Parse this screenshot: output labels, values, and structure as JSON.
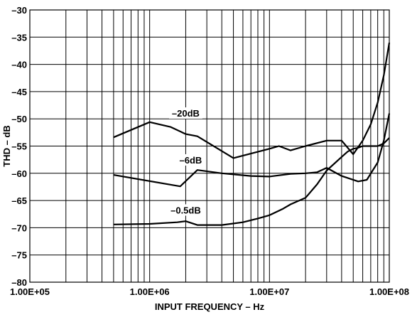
{
  "chart_data": {
    "type": "line",
    "title": "",
    "xlabel": "INPUT FREQUENCY – Hz",
    "ylabel": "THD – dB",
    "x_scale": "log",
    "xlim": [
      100000,
      100000000
    ],
    "ylim": [
      -80,
      -30
    ],
    "grid": true,
    "legend": "none",
    "x_ticks": [
      {
        "value": 100000,
        "label": "1.00E+05"
      },
      {
        "value": 1000000,
        "label": "1.00E+06"
      },
      {
        "value": 10000000,
        "label": "1.00E+07"
      },
      {
        "value": 100000000,
        "label": "1.00E+08"
      }
    ],
    "y_ticks": [
      {
        "value": -30,
        "label": "–30"
      },
      {
        "value": -35,
        "label": "–35"
      },
      {
        "value": -40,
        "label": "–40"
      },
      {
        "value": -45,
        "label": "–45"
      },
      {
        "value": -50,
        "label": "–50"
      },
      {
        "value": -55,
        "label": "–55"
      },
      {
        "value": -60,
        "label": "–60"
      },
      {
        "value": -65,
        "label": "–65"
      },
      {
        "value": -70,
        "label": "–70"
      },
      {
        "value": -75,
        "label": "–75"
      },
      {
        "value": -80,
        "label": "–80"
      }
    ],
    "series": [
      {
        "name": "–20dB",
        "label_anchor": {
          "x": 2000000,
          "y": -49.2
        },
        "points": [
          [
            500000,
            -53.4
          ],
          [
            1000000,
            -50.6
          ],
          [
            1500000,
            -51.5
          ],
          [
            2000000,
            -52.8
          ],
          [
            2500000,
            -53.2
          ],
          [
            5000000,
            -57.2
          ],
          [
            10000000,
            -55.5
          ],
          [
            12000000,
            -55.0
          ],
          [
            15000000,
            -55.8
          ],
          [
            20000000,
            -55.0
          ],
          [
            30000000,
            -54.0
          ],
          [
            40000000,
            -54.0
          ],
          [
            50000000,
            -56.5
          ],
          [
            60000000,
            -54.0
          ],
          [
            70000000,
            -51.0
          ],
          [
            80000000,
            -47.0
          ],
          [
            90000000,
            -42.0
          ],
          [
            100000000,
            -36.0
          ]
        ]
      },
      {
        "name": "–6dB",
        "label_anchor": {
          "x": 2200000,
          "y": -57.8
        },
        "points": [
          [
            500000,
            -60.3
          ],
          [
            1800000,
            -62.4
          ],
          [
            2500000,
            -59.4
          ],
          [
            4000000,
            -60.0
          ],
          [
            7000000,
            -60.5
          ],
          [
            10000000,
            -60.6
          ],
          [
            15000000,
            -60.1
          ],
          [
            20000000,
            -60.0
          ],
          [
            25000000,
            -59.8
          ],
          [
            30000000,
            -59.0
          ],
          [
            40000000,
            -60.5
          ],
          [
            55000000,
            -61.5
          ],
          [
            65000000,
            -61.2
          ],
          [
            80000000,
            -58.0
          ],
          [
            90000000,
            -54.0
          ],
          [
            100000000,
            -49.0
          ]
        ]
      },
      {
        "name": "–0.5dB",
        "label_anchor": {
          "x": 2000000,
          "y": -67.0
        },
        "points": [
          [
            500000,
            -69.4
          ],
          [
            1000000,
            -69.3
          ],
          [
            1700000,
            -69.0
          ],
          [
            2000000,
            -68.8
          ],
          [
            2500000,
            -69.5
          ],
          [
            4000000,
            -69.5
          ],
          [
            6000000,
            -69.0
          ],
          [
            8000000,
            -68.3
          ],
          [
            10000000,
            -67.7
          ],
          [
            13000000,
            -66.5
          ],
          [
            15000000,
            -65.7
          ],
          [
            20000000,
            -64.5
          ],
          [
            25000000,
            -62.0
          ],
          [
            30000000,
            -59.5
          ],
          [
            40000000,
            -57.0
          ],
          [
            45000000,
            -56.0
          ],
          [
            50000000,
            -55.5
          ],
          [
            55000000,
            -55.3
          ],
          [
            60000000,
            -55.0
          ],
          [
            70000000,
            -55.0
          ],
          [
            80000000,
            -55.0
          ],
          [
            90000000,
            -54.5
          ],
          [
            100000000,
            -53.5
          ]
        ]
      }
    ]
  }
}
